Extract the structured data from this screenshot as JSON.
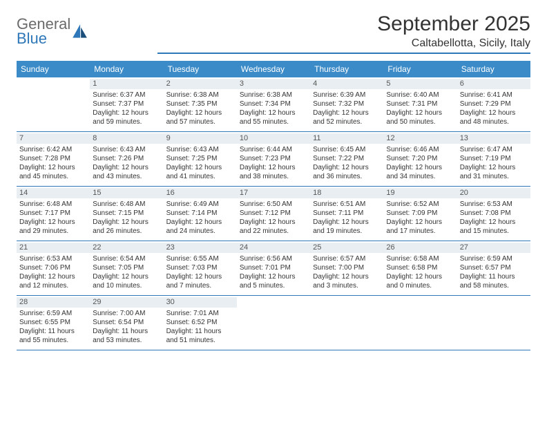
{
  "logo": {
    "general": "General",
    "blue": "Blue"
  },
  "title": "September 2025",
  "location": "Caltabellotta, Sicily, Italy",
  "colors": {
    "header_bg": "#3b8bc8",
    "accent": "#2e77b8",
    "daynum_bg": "#e9eef2",
    "text": "#333333",
    "logo_gray": "#6b6b6b"
  },
  "dow": [
    "Sunday",
    "Monday",
    "Tuesday",
    "Wednesday",
    "Thursday",
    "Friday",
    "Saturday"
  ],
  "weeks": [
    [
      {
        "n": "",
        "sr": "",
        "ss": "",
        "dl": ""
      },
      {
        "n": "1",
        "sr": "Sunrise: 6:37 AM",
        "ss": "Sunset: 7:37 PM",
        "dl": "Daylight: 12 hours and 59 minutes."
      },
      {
        "n": "2",
        "sr": "Sunrise: 6:38 AM",
        "ss": "Sunset: 7:35 PM",
        "dl": "Daylight: 12 hours and 57 minutes."
      },
      {
        "n": "3",
        "sr": "Sunrise: 6:38 AM",
        "ss": "Sunset: 7:34 PM",
        "dl": "Daylight: 12 hours and 55 minutes."
      },
      {
        "n": "4",
        "sr": "Sunrise: 6:39 AM",
        "ss": "Sunset: 7:32 PM",
        "dl": "Daylight: 12 hours and 52 minutes."
      },
      {
        "n": "5",
        "sr": "Sunrise: 6:40 AM",
        "ss": "Sunset: 7:31 PM",
        "dl": "Daylight: 12 hours and 50 minutes."
      },
      {
        "n": "6",
        "sr": "Sunrise: 6:41 AM",
        "ss": "Sunset: 7:29 PM",
        "dl": "Daylight: 12 hours and 48 minutes."
      }
    ],
    [
      {
        "n": "7",
        "sr": "Sunrise: 6:42 AM",
        "ss": "Sunset: 7:28 PM",
        "dl": "Daylight: 12 hours and 45 minutes."
      },
      {
        "n": "8",
        "sr": "Sunrise: 6:43 AM",
        "ss": "Sunset: 7:26 PM",
        "dl": "Daylight: 12 hours and 43 minutes."
      },
      {
        "n": "9",
        "sr": "Sunrise: 6:43 AM",
        "ss": "Sunset: 7:25 PM",
        "dl": "Daylight: 12 hours and 41 minutes."
      },
      {
        "n": "10",
        "sr": "Sunrise: 6:44 AM",
        "ss": "Sunset: 7:23 PM",
        "dl": "Daylight: 12 hours and 38 minutes."
      },
      {
        "n": "11",
        "sr": "Sunrise: 6:45 AM",
        "ss": "Sunset: 7:22 PM",
        "dl": "Daylight: 12 hours and 36 minutes."
      },
      {
        "n": "12",
        "sr": "Sunrise: 6:46 AM",
        "ss": "Sunset: 7:20 PM",
        "dl": "Daylight: 12 hours and 34 minutes."
      },
      {
        "n": "13",
        "sr": "Sunrise: 6:47 AM",
        "ss": "Sunset: 7:19 PM",
        "dl": "Daylight: 12 hours and 31 minutes."
      }
    ],
    [
      {
        "n": "14",
        "sr": "Sunrise: 6:48 AM",
        "ss": "Sunset: 7:17 PM",
        "dl": "Daylight: 12 hours and 29 minutes."
      },
      {
        "n": "15",
        "sr": "Sunrise: 6:48 AM",
        "ss": "Sunset: 7:15 PM",
        "dl": "Daylight: 12 hours and 26 minutes."
      },
      {
        "n": "16",
        "sr": "Sunrise: 6:49 AM",
        "ss": "Sunset: 7:14 PM",
        "dl": "Daylight: 12 hours and 24 minutes."
      },
      {
        "n": "17",
        "sr": "Sunrise: 6:50 AM",
        "ss": "Sunset: 7:12 PM",
        "dl": "Daylight: 12 hours and 22 minutes."
      },
      {
        "n": "18",
        "sr": "Sunrise: 6:51 AM",
        "ss": "Sunset: 7:11 PM",
        "dl": "Daylight: 12 hours and 19 minutes."
      },
      {
        "n": "19",
        "sr": "Sunrise: 6:52 AM",
        "ss": "Sunset: 7:09 PM",
        "dl": "Daylight: 12 hours and 17 minutes."
      },
      {
        "n": "20",
        "sr": "Sunrise: 6:53 AM",
        "ss": "Sunset: 7:08 PM",
        "dl": "Daylight: 12 hours and 15 minutes."
      }
    ],
    [
      {
        "n": "21",
        "sr": "Sunrise: 6:53 AM",
        "ss": "Sunset: 7:06 PM",
        "dl": "Daylight: 12 hours and 12 minutes."
      },
      {
        "n": "22",
        "sr": "Sunrise: 6:54 AM",
        "ss": "Sunset: 7:05 PM",
        "dl": "Daylight: 12 hours and 10 minutes."
      },
      {
        "n": "23",
        "sr": "Sunrise: 6:55 AM",
        "ss": "Sunset: 7:03 PM",
        "dl": "Daylight: 12 hours and 7 minutes."
      },
      {
        "n": "24",
        "sr": "Sunrise: 6:56 AM",
        "ss": "Sunset: 7:01 PM",
        "dl": "Daylight: 12 hours and 5 minutes."
      },
      {
        "n": "25",
        "sr": "Sunrise: 6:57 AM",
        "ss": "Sunset: 7:00 PM",
        "dl": "Daylight: 12 hours and 3 minutes."
      },
      {
        "n": "26",
        "sr": "Sunrise: 6:58 AM",
        "ss": "Sunset: 6:58 PM",
        "dl": "Daylight: 12 hours and 0 minutes."
      },
      {
        "n": "27",
        "sr": "Sunrise: 6:59 AM",
        "ss": "Sunset: 6:57 PM",
        "dl": "Daylight: 11 hours and 58 minutes."
      }
    ],
    [
      {
        "n": "28",
        "sr": "Sunrise: 6:59 AM",
        "ss": "Sunset: 6:55 PM",
        "dl": "Daylight: 11 hours and 55 minutes."
      },
      {
        "n": "29",
        "sr": "Sunrise: 7:00 AM",
        "ss": "Sunset: 6:54 PM",
        "dl": "Daylight: 11 hours and 53 minutes."
      },
      {
        "n": "30",
        "sr": "Sunrise: 7:01 AM",
        "ss": "Sunset: 6:52 PM",
        "dl": "Daylight: 11 hours and 51 minutes."
      },
      {
        "n": "",
        "sr": "",
        "ss": "",
        "dl": ""
      },
      {
        "n": "",
        "sr": "",
        "ss": "",
        "dl": ""
      },
      {
        "n": "",
        "sr": "",
        "ss": "",
        "dl": ""
      },
      {
        "n": "",
        "sr": "",
        "ss": "",
        "dl": ""
      }
    ]
  ]
}
